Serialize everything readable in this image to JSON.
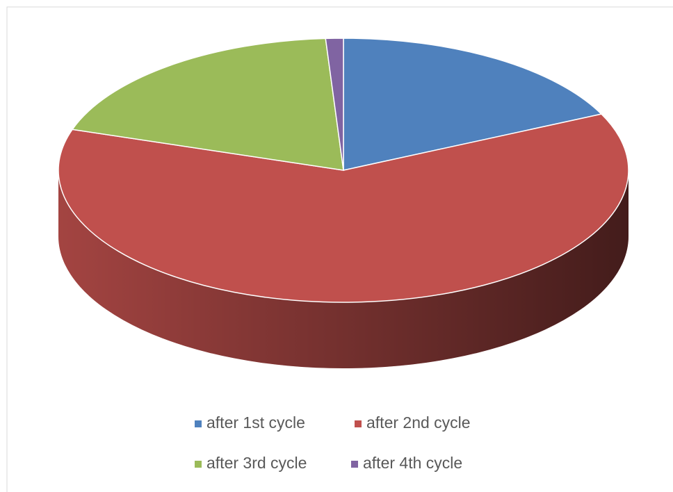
{
  "chart_data": {
    "type": "pie",
    "categories": [
      "after 1st cycle",
      "after 2nd cycle",
      "after 3rd cycle",
      "after 4th cycle"
    ],
    "values": [
      18,
      62,
      19,
      1
    ],
    "colors": [
      "#4f81bd",
      "#c0504d",
      "#9bbb59",
      "#8064a2"
    ],
    "legend": "bottom"
  }
}
